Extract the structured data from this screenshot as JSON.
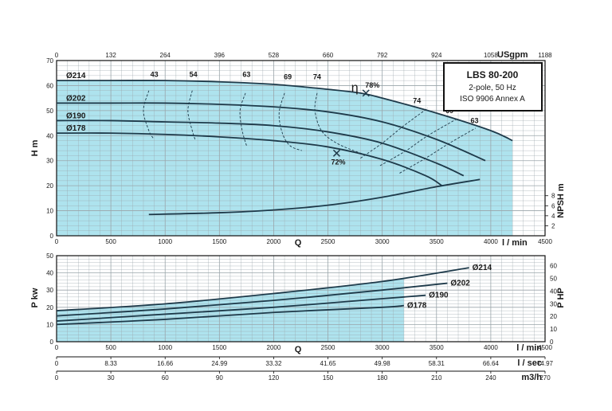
{
  "chart_data": [
    {
      "type": "line",
      "title": "LBS 80-200",
      "subtitle": [
        "2-pole, 50 Hz",
        "ISO 9906 Annex A"
      ],
      "xlabel": "Q",
      "xlabel_unit": "l / min",
      "ylabel": "H m",
      "ylabel_right": "NPSH m",
      "secondary_xlabel": "USgpm",
      "xlim": [
        0,
        4500
      ],
      "ylim": [
        0,
        70
      ],
      "xticks": [
        "0",
        "500",
        "1000",
        "1500",
        "2000",
        "2500",
        "3000",
        "3500",
        "4000",
        "4500"
      ],
      "yticks": [
        "0",
        "10",
        "20",
        "30",
        "40",
        "50",
        "60",
        "70"
      ],
      "npsh_ticks": [
        "2",
        "4",
        "6",
        "8"
      ],
      "usgpm_ticks": [
        "0",
        "132",
        "264",
        "396",
        "528",
        "660",
        "792",
        "924",
        "1058",
        "1188"
      ],
      "grid": true,
      "shaded_region": {
        "q_max": 4200,
        "color": "#aee3ee"
      },
      "series": [
        {
          "name": "Ø214",
          "x": [
            0,
            500,
            1000,
            1500,
            2000,
            2500,
            2800,
            3000,
            3500,
            4000,
            4200
          ],
          "y": [
            62,
            62,
            62,
            61.5,
            60.5,
            58.5,
            57,
            55,
            49,
            42,
            38
          ]
        },
        {
          "name": "Ø202",
          "x": [
            0,
            500,
            1000,
            1500,
            2000,
            2500,
            3000,
            3500,
            3950
          ],
          "y": [
            53,
            53,
            53,
            52.5,
            51.5,
            49.5,
            45.5,
            38.5,
            30
          ]
        },
        {
          "name": "Ø190",
          "x": [
            0,
            500,
            1000,
            1500,
            2000,
            2500,
            3000,
            3500,
            3750
          ],
          "y": [
            46,
            46,
            45.5,
            45,
            44,
            41.5,
            37,
            29,
            24
          ]
        },
        {
          "name": "Ø178",
          "x": [
            0,
            500,
            1000,
            1500,
            2000,
            2500,
            3000,
            3400,
            3550
          ],
          "y": [
            41,
            41,
            40.5,
            39.5,
            38,
            35.5,
            30.5,
            24,
            20
          ]
        }
      ],
      "npsh_series": {
        "x": [
          850,
          1500,
          2000,
          2500,
          3000,
          3500,
          3900
        ],
        "y": [
          8.5,
          9.2,
          10.3,
          12.2,
          15.4,
          19.6,
          22.5
        ]
      },
      "efficiency_labels": [
        {
          "text": "43",
          "x": 900,
          "y": 63.5
        },
        {
          "text": "54",
          "x": 1260,
          "y": 63.5
        },
        {
          "text": "63",
          "x": 1750,
          "y": 63.5
        },
        {
          "text": "69",
          "x": 2130,
          "y": 62.5
        },
        {
          "text": "74",
          "x": 2400,
          "y": 62.5
        },
        {
          "text": "74",
          "x": 3320,
          "y": 53
        },
        {
          "text": "69",
          "x": 3620,
          "y": 49
        },
        {
          "text": "63",
          "x": 3850,
          "y": 45
        }
      ],
      "efficiency_contours": [
        {
          "x": [
            850,
            800,
            850,
            890
          ],
          "y": [
            58,
            50,
            42,
            39
          ]
        },
        {
          "x": [
            1250,
            1210,
            1250,
            1280
          ],
          "y": [
            58,
            50,
            42,
            38
          ]
        },
        {
          "x": [
            1740,
            1690,
            1710,
            1750
          ],
          "y": [
            57,
            50,
            42,
            36
          ]
        },
        {
          "x": [
            2100,
            2050,
            2080,
            2150,
            2260
          ],
          "y": [
            57,
            49,
            41,
            36,
            34
          ]
        },
        {
          "x": [
            2400,
            2380,
            2440,
            2580,
            2800,
            2950
          ],
          "y": [
            57,
            50,
            42,
            37,
            33,
            31
          ]
        },
        {
          "x": [
            2800,
            3000,
            3200,
            3420
          ],
          "y": [
            31,
            37,
            44,
            51
          ]
        },
        {
          "x": [
            2980,
            3220,
            3420,
            3700
          ],
          "y": [
            28,
            34,
            40,
            47
          ]
        },
        {
          "x": [
            3160,
            3400,
            3620,
            3860
          ],
          "y": [
            25,
            31,
            37,
            43
          ]
        }
      ],
      "bep_markers": [
        {
          "label": "η",
          "value": "78%",
          "x": 2850,
          "y": 57
        },
        {
          "label": "",
          "value": "72%",
          "x": 2580,
          "y": 33
        }
      ]
    },
    {
      "type": "line",
      "xlabel": "Q",
      "ylabel": "P kw",
      "ylabel_right": "P HP",
      "xlim": [
        0,
        4500
      ],
      "ylim": [
        0,
        50
      ],
      "xticks": [
        "0",
        "500",
        "1000",
        "1500",
        "2000",
        "2500",
        "3000",
        "3500",
        "4000",
        "4500"
      ],
      "yticks": [
        "0",
        "10",
        "20",
        "30",
        "40",
        "50"
      ],
      "hp_ticks": [
        "0",
        "10",
        "20",
        "30",
        "40",
        "50",
        "60"
      ],
      "grid": true,
      "shaded_region": {
        "q_max": 3200,
        "color": "#aee3ee"
      },
      "series": [
        {
          "name": "Ø214",
          "x": [
            0,
            1000,
            2000,
            3000,
            3800
          ],
          "y": [
            18,
            22,
            28,
            35,
            43
          ]
        },
        {
          "name": "Ø202",
          "x": [
            0,
            1000,
            2000,
            3000,
            3600
          ],
          "y": [
            15,
            19,
            24,
            30,
            34
          ]
        },
        {
          "name": "Ø190",
          "x": [
            0,
            1000,
            2000,
            3000,
            3400
          ],
          "y": [
            12,
            16,
            20,
            25,
            27
          ]
        },
        {
          "name": "Ø178",
          "x": [
            0,
            1000,
            2000,
            3000,
            3200
          ],
          "y": [
            10,
            13,
            17,
            20,
            21
          ]
        }
      ]
    }
  ],
  "flow_scales": [
    {
      "unit": "l / min",
      "ticks": [
        "0",
        "500",
        "1000",
        "1500",
        "2000",
        "2500",
        "3000",
        "3500",
        "4000",
        "4500"
      ]
    },
    {
      "unit": "l / sec",
      "ticks": [
        "0",
        "8.33",
        "16.66",
        "24.99",
        "33.32",
        "41.65",
        "49.98",
        "58.31",
        "66.64",
        "74.97"
      ]
    },
    {
      "unit": "m3/h",
      "ticks": [
        "0",
        "30",
        "60",
        "90",
        "120",
        "150",
        "180",
        "210",
        "240",
        "270"
      ]
    }
  ],
  "colors": {
    "curve": "#1e3a4a",
    "shade": "#aee3ee",
    "grid": "#9aa5aa",
    "border": "#111111"
  }
}
